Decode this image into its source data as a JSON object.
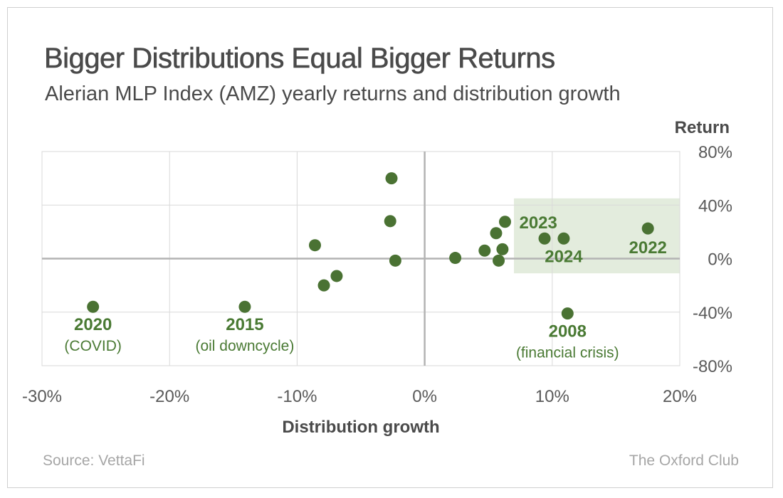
{
  "header": {
    "title": "Bigger Distributions Equal Bigger Returns",
    "subtitle": "Alerian MLP Index (AMZ) yearly returns and distribution growth"
  },
  "footer": {
    "source": "Source: VettaFi",
    "brand": "The Oxford Club"
  },
  "colors": {
    "point": "#4a7233",
    "label": "#4a7a34",
    "highlight": "#e3ecdd",
    "grid": "#d9d9d9",
    "zero_axis": "#b3b3b3"
  },
  "chart_data": {
    "type": "scatter",
    "title": "Bigger Distributions Equal Bigger Returns",
    "subtitle": "Alerian MLP Index (AMZ) yearly returns and distribution growth",
    "xlabel": "Distribution growth",
    "ylabel": "Return",
    "xlim": [
      -30,
      20
    ],
    "ylim": [
      -80,
      80
    ],
    "xticks": [
      -30,
      -20,
      -10,
      0,
      10,
      20
    ],
    "yticks": [
      80,
      40,
      0,
      -40,
      -80
    ],
    "xtick_labels": [
      "-30%",
      "-20%",
      "-10%",
      "0%",
      "10%",
      "20%"
    ],
    "ytick_labels": [
      "80%",
      "40%",
      "0%",
      "-40%",
      "-80%"
    ],
    "grid": true,
    "highlight_region": {
      "x": [
        7.0,
        20.0
      ],
      "y": [
        -11,
        45
      ]
    },
    "points": [
      {
        "x": -26.0,
        "y": -36.0
      },
      {
        "x": -14.1,
        "y": -36.0
      },
      {
        "x": -8.6,
        "y": 10.0
      },
      {
        "x": -7.9,
        "y": -20.0
      },
      {
        "x": -6.9,
        "y": -13.0
      },
      {
        "x": -2.6,
        "y": 60.0
      },
      {
        "x": -2.7,
        "y": 28.0
      },
      {
        "x": -2.3,
        "y": -1.5
      },
      {
        "x": 2.4,
        "y": 0.5
      },
      {
        "x": 4.7,
        "y": 6.0
      },
      {
        "x": 5.6,
        "y": 19.0
      },
      {
        "x": 5.8,
        "y": -1.5
      },
      {
        "x": 6.1,
        "y": 7.0
      },
      {
        "x": 6.3,
        "y": 27.5
      },
      {
        "x": 9.4,
        "y": 15.0
      },
      {
        "x": 10.9,
        "y": 15.0
      },
      {
        "x": 11.2,
        "y": -41.0
      },
      {
        "x": 17.5,
        "y": 22.5
      }
    ],
    "annotations": [
      {
        "year": "2020",
        "note": "(COVID)",
        "x": -26.0,
        "y": -36.0,
        "pos": "below"
      },
      {
        "year": "2015",
        "note": "(oil downcycle)",
        "x": -14.1,
        "y": -36.0,
        "pos": "below"
      },
      {
        "year": "2008",
        "note": "(financial crisis)",
        "x": 11.2,
        "y": -41.0,
        "pos": "below"
      },
      {
        "year": "2023",
        "note": "",
        "x": 6.3,
        "y": 27.5,
        "pos": "right"
      },
      {
        "year": "2024",
        "note": "",
        "x": 10.9,
        "y": 15.0,
        "pos": "below"
      },
      {
        "year": "2022",
        "note": "",
        "x": 17.5,
        "y": 22.5,
        "pos": "below-left"
      }
    ]
  }
}
